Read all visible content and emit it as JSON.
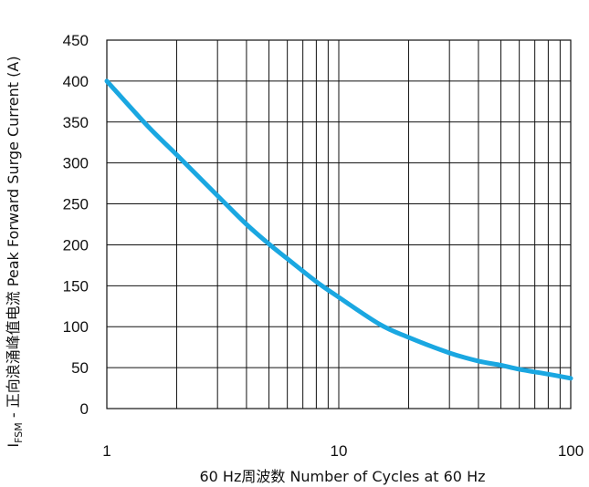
{
  "chart_data": {
    "type": "line",
    "xlabel": "60 Hz周波数 Number of Cycles at 60 Hz",
    "ylabel": {
      "symbol": "I",
      "subscript": "FSM",
      "text": " - 正向浪涌峰值电流 Peak Forward Surge Current (A)"
    },
    "x_scale": "log",
    "xlim": [
      1,
      100
    ],
    "ylim": [
      0,
      450
    ],
    "x_ticks": [
      1,
      10,
      100
    ],
    "x_tick_labels": [
      "1",
      "10",
      "100"
    ],
    "y_ticks": [
      0,
      50,
      100,
      150,
      200,
      250,
      300,
      350,
      400,
      450
    ],
    "y_tick_labels": [
      "0",
      "50",
      "100",
      "150",
      "200",
      "250",
      "300",
      "350",
      "400",
      "450"
    ],
    "grid": true,
    "line_color": "#1aa7e1",
    "series": [
      {
        "x": [
          1,
          1.5,
          2,
          3,
          4,
          5,
          6,
          8,
          10,
          15,
          20,
          30,
          40,
          50,
          60,
          80,
          100
        ],
        "y": [
          400,
          345,
          310,
          260,
          225,
          201,
          183,
          155,
          136,
          103,
          87,
          68,
          58,
          53,
          48,
          42,
          37
        ]
      }
    ]
  }
}
